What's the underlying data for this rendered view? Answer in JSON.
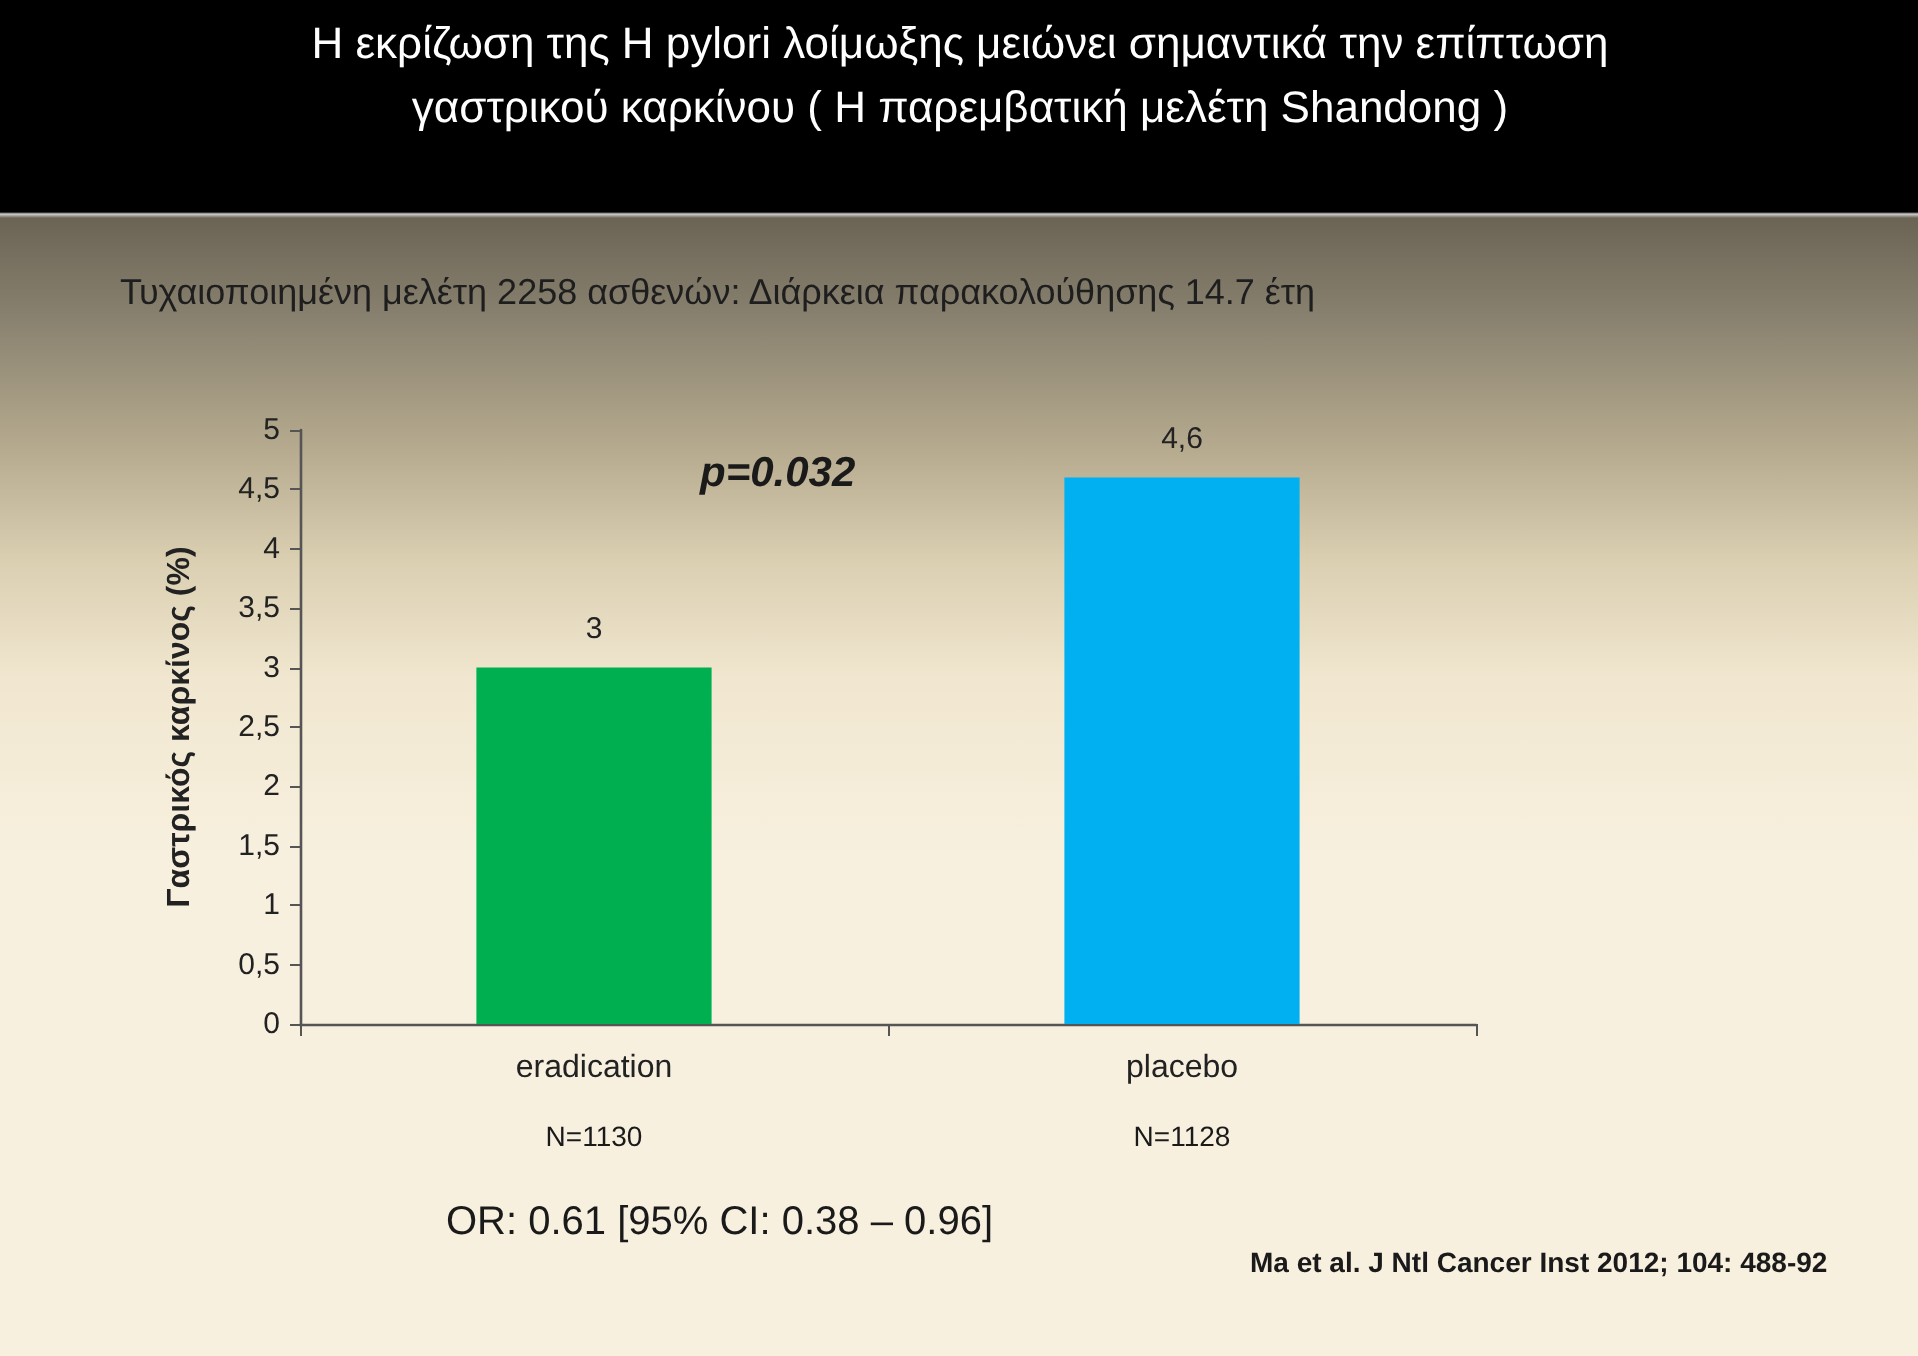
{
  "chart_data": {
    "type": "bar",
    "title": "Η εκρίζωση της H pylori λοίμωξης μειώνει σημαντικά την επίπτωση γαστρικού καρκίνου ( Η παρεμβατική μελέτη Shandong )",
    "subtitle": "Τυχαιοποιημένη μελέτη 2258 ασθενών: Διάρκεια παρακολούθησης 14.7 έτη",
    "ylabel": "Γαστρικός καρκίνος (%)",
    "categories": [
      "eradication",
      "placebo"
    ],
    "values": [
      3,
      4.6
    ],
    "colors": [
      "#00b050",
      "#00b0f0"
    ],
    "value_labels": [
      "3",
      "4,6"
    ],
    "ylim": [
      0,
      5
    ],
    "yticks": [
      0,
      {
        "value": 0.5,
        "label": "0,5"
      },
      1,
      {
        "value": 1.5,
        "label": "1,5"
      },
      2,
      {
        "value": 2.5,
        "label": "2,5"
      },
      3,
      {
        "value": 3.5,
        "label": "3,5"
      },
      4,
      {
        "value": 4.5,
        "label": "4,5"
      },
      5
    ],
    "annotations": [
      "p=0.032",
      "N=1130",
      "N=1128",
      "OR: 0.61 [95% CI: 0.38 – 0.96]",
      "Ma et al. J Ntl Cancer Inst 2012; 104: 488-92"
    ]
  }
}
